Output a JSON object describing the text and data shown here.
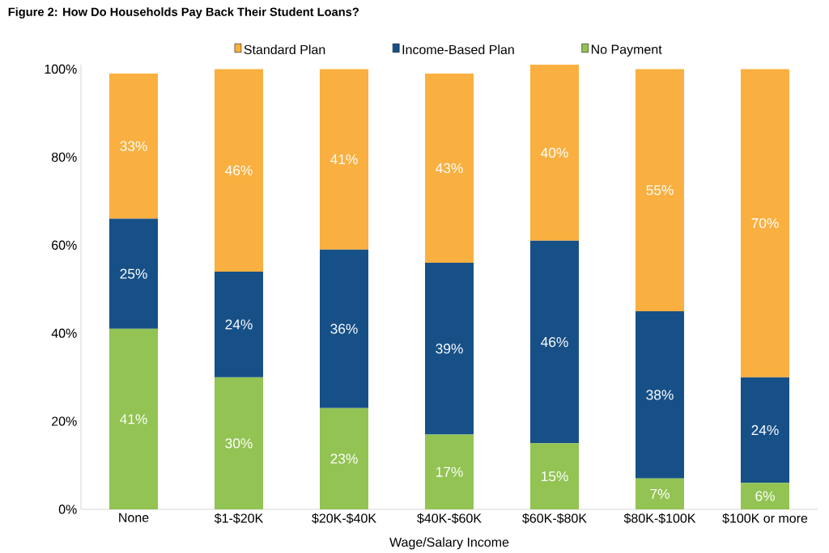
{
  "chart_data": {
    "type": "bar",
    "stacked": true,
    "title": "Figure 2: How Do Households Pay Back Their Student Loans?",
    "xlabel": "Wage/Salary Income",
    "categories": [
      "None",
      "$1-$20K",
      "$20K-$40K",
      "$40K-$60K",
      "$60K-$80K",
      "$80K-$100K",
      "$100K or more"
    ],
    "series": [
      {
        "name": "No Payment",
        "color": "#92c353",
        "values": [
          41,
          30,
          23,
          17,
          15,
          7,
          6
        ],
        "value_labels": [
          "41%",
          "30%",
          "23%",
          "17%",
          "15%",
          "7%",
          "6%"
        ]
      },
      {
        "name": "Income-Based Plan",
        "color": "#175087",
        "values": [
          25,
          24,
          36,
          39,
          46,
          38,
          24
        ],
        "value_labels": [
          "25%",
          "24%",
          "36%",
          "39%",
          "46%",
          "38%",
          "24%"
        ]
      },
      {
        "name": "Standard Plan",
        "color": "#f9b040",
        "values": [
          33,
          46,
          41,
          43,
          40,
          55,
          70
        ],
        "value_labels": [
          "33%",
          "46%",
          "41%",
          "43%",
          "40%",
          "55%",
          "70%"
        ]
      }
    ],
    "ylim": [
      0,
      101
    ],
    "yticks": [
      {
        "value": 0,
        "label": "0%"
      },
      {
        "value": 20,
        "label": "20%"
      },
      {
        "value": 40,
        "label": "40%"
      },
      {
        "value": 60,
        "label": "60%"
      },
      {
        "value": 80,
        "label": "80%"
      },
      {
        "value": 100,
        "label": "100%"
      }
    ],
    "grid": false,
    "legend": "top"
  }
}
